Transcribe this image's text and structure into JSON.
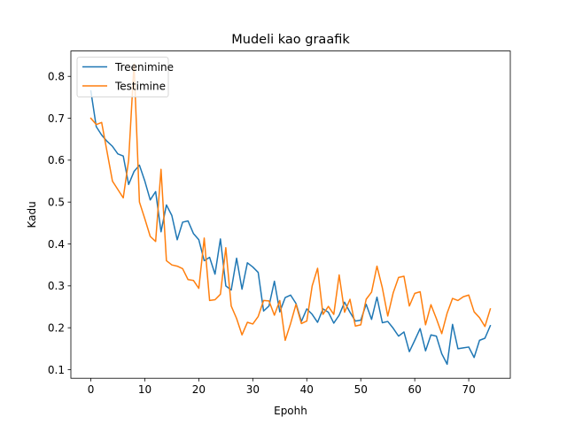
{
  "chart_data": {
    "type": "line",
    "title": "Mudeli kao graafik",
    "xlabel": "Epohh",
    "ylabel": "Kadu",
    "xlim": [
      -3.7,
      77.7
    ],
    "ylim": [
      0.0795,
      0.8605
    ],
    "xticks": [
      0,
      10,
      20,
      30,
      40,
      50,
      60,
      70
    ],
    "yticks": [
      0.1,
      0.2,
      0.3,
      0.4,
      0.5,
      0.6,
      0.7,
      0.8
    ],
    "xtick_labels": [
      "0",
      "10",
      "20",
      "30",
      "40",
      "50",
      "60",
      "70"
    ],
    "ytick_labels": [
      "0.1",
      "0.2",
      "0.3",
      "0.4",
      "0.5",
      "0.6",
      "0.7",
      "0.8"
    ],
    "grid": false,
    "legend_position": "top-left",
    "series": [
      {
        "name": "Treenimine",
        "color": "#1f77b4",
        "values": [
          0.765,
          0.68,
          0.66,
          0.645,
          0.633,
          0.615,
          0.61,
          0.542,
          0.573,
          0.588,
          0.55,
          0.505,
          0.525,
          0.429,
          0.493,
          0.468,
          0.41,
          0.452,
          0.455,
          0.425,
          0.41,
          0.36,
          0.368,
          0.328,
          0.412,
          0.3,
          0.29,
          0.366,
          0.292,
          0.355,
          0.345,
          0.332,
          0.24,
          0.252,
          0.311,
          0.238,
          0.272,
          0.278,
          0.258,
          0.215,
          0.245,
          0.232,
          0.213,
          0.245,
          0.237,
          0.211,
          0.23,
          0.261,
          0.237,
          0.216,
          0.218,
          0.256,
          0.22,
          0.273,
          0.212,
          0.215,
          0.199,
          0.18,
          0.19,
          0.143,
          0.17,
          0.198,
          0.145,
          0.183,
          0.18,
          0.138,
          0.113,
          0.208,
          0.15,
          0.152,
          0.154,
          0.129,
          0.17,
          0.175,
          0.205
        ]
      },
      {
        "name": "Testimine",
        "color": "#ff7f0e",
        "values": [
          0.7,
          0.685,
          0.69,
          0.62,
          0.55,
          0.53,
          0.51,
          0.6,
          0.83,
          0.5,
          0.46,
          0.418,
          0.406,
          0.578,
          0.36,
          0.35,
          0.347,
          0.341,
          0.315,
          0.313,
          0.294,
          0.414,
          0.265,
          0.267,
          0.28,
          0.391,
          0.252,
          0.222,
          0.183,
          0.213,
          0.209,
          0.227,
          0.265,
          0.264,
          0.23,
          0.265,
          0.17,
          0.21,
          0.256,
          0.21,
          0.216,
          0.3,
          0.342,
          0.232,
          0.251,
          0.232,
          0.326,
          0.237,
          0.268,
          0.204,
          0.207,
          0.268,
          0.285,
          0.347,
          0.295,
          0.228,
          0.283,
          0.32,
          0.323,
          0.252,
          0.282,
          0.286,
          0.207,
          0.255,
          0.222,
          0.186,
          0.235,
          0.27,
          0.265,
          0.274,
          0.278,
          0.238,
          0.224,
          0.203,
          0.245
        ]
      }
    ]
  }
}
